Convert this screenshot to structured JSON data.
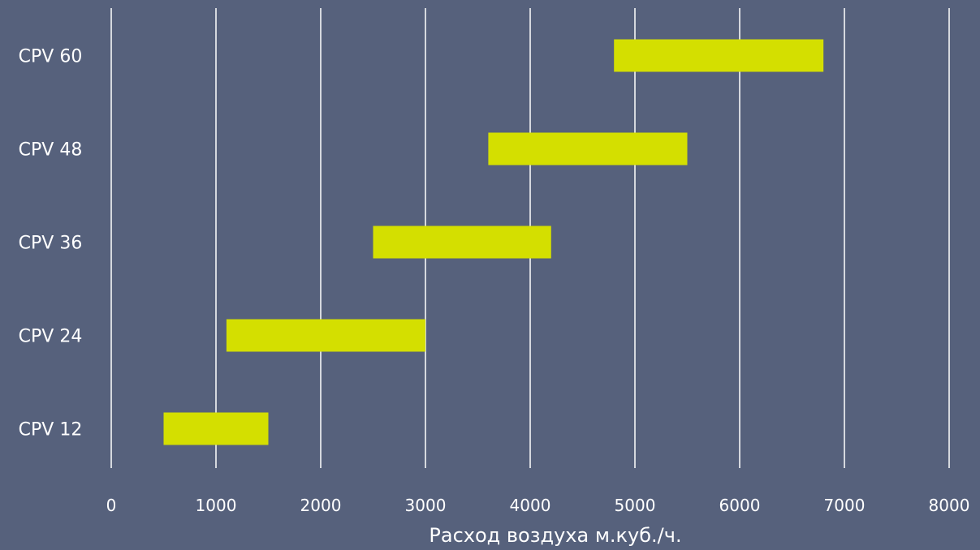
{
  "chart_data": {
    "type": "bar",
    "orientation": "horizontal",
    "subtype": "range",
    "categories": [
      "CPV 60",
      "CPV 48",
      "CPV 36",
      "CPV 24",
      "CPV 12"
    ],
    "series": [
      {
        "ranges": [
          [
            4800,
            6800
          ],
          [
            3600,
            5500
          ],
          [
            2500,
            4200
          ],
          [
            1100,
            3000
          ],
          [
            500,
            1500
          ]
        ]
      }
    ],
    "xlabel": "Расход воздуха м.куб./ч.",
    "ylabel": "",
    "title": "",
    "xlim": [
      0,
      8000
    ],
    "xticks": [
      "0",
      "1000",
      "2000",
      "3000",
      "4000",
      "5000",
      "6000",
      "7000",
      "8000"
    ],
    "grid": "vertical",
    "legend": "none",
    "colors": {
      "background": "#56617c",
      "bar": "#d4df00",
      "grid": "#ffffff",
      "text": "#ffffff"
    }
  }
}
